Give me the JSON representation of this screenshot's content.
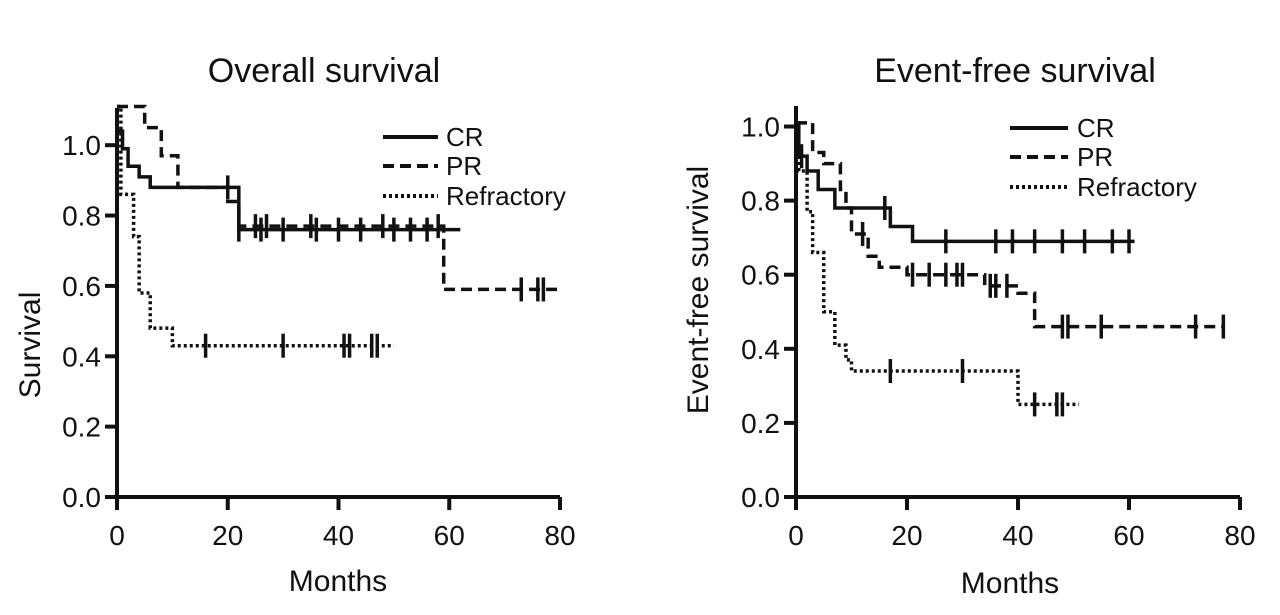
{
  "colors": {
    "ink": "#111111",
    "background": "#ffffff"
  },
  "chart_data": [
    {
      "type": "line",
      "title": "Overall survival",
      "xlabel": "Months",
      "ylabel": "Survival",
      "xlim": [
        0,
        80
      ],
      "ylim": [
        0,
        1.1
      ],
      "xticks": [
        "0",
        "20",
        "40",
        "60",
        "80"
      ],
      "yticks": [
        "0.0",
        "0.2",
        "0.4",
        "0.6",
        "0.8",
        "1.0"
      ],
      "legend": {
        "position": "top-right",
        "entries": [
          "CR",
          "PR",
          "Refractory"
        ]
      },
      "series": [
        {
          "name": "CR",
          "style": "solid",
          "steps": [
            [
              0,
              1.04
            ],
            [
              1,
              0.99
            ],
            [
              2,
              0.94
            ],
            [
              4,
              0.91
            ],
            [
              6,
              0.88
            ],
            [
              15,
              0.88
            ],
            [
              22,
              0.76
            ],
            [
              62,
              0.76
            ]
          ],
          "censored": [
            20,
            22,
            26,
            30,
            36,
            40,
            44,
            50,
            53,
            56
          ]
        },
        {
          "name": "PR",
          "style": "dashed",
          "steps": [
            [
              0,
              1.11
            ],
            [
              5,
              1.05
            ],
            [
              8,
              0.97
            ],
            [
              11,
              0.88
            ],
            [
              20,
              0.84
            ],
            [
              22,
              0.77
            ],
            [
              59,
              0.77
            ],
            [
              59,
              0.59
            ],
            [
              80,
              0.59
            ]
          ],
          "censored": [
            25,
            27,
            35,
            48,
            58,
            73,
            76,
            77
          ]
        },
        {
          "name": "Refractory",
          "style": "dotted",
          "steps": [
            [
              0,
              1.11
            ],
            [
              0.7,
              0.86
            ],
            [
              3,
              0.74
            ],
            [
              4,
              0.58
            ],
            [
              6,
              0.48
            ],
            [
              10,
              0.43
            ],
            [
              50,
              0.43
            ]
          ],
          "censored": [
            16,
            30,
            41,
            42,
            46,
            47
          ]
        }
      ]
    },
    {
      "type": "line",
      "title": "Event-free survival",
      "xlabel": "Months",
      "ylabel": "Event-free survival",
      "xlim": [
        0,
        80
      ],
      "ylim": [
        0,
        1.05
      ],
      "xticks": [
        "0",
        "20",
        "40",
        "60",
        "80"
      ],
      "yticks": [
        "0.0",
        "0.2",
        "0.4",
        "0.6",
        "0.8",
        "1.0"
      ],
      "legend": {
        "position": "top-right",
        "entries": [
          "CR",
          "PR",
          "Refractory"
        ]
      },
      "series": [
        {
          "name": "CR",
          "style": "solid",
          "steps": [
            [
              0,
              1.01
            ],
            [
              0.5,
              0.92
            ],
            [
              2,
              0.88
            ],
            [
              4,
              0.83
            ],
            [
              7,
              0.78
            ],
            [
              15,
              0.78
            ],
            [
              17,
              0.73
            ],
            [
              21,
              0.69
            ],
            [
              61,
              0.69
            ]
          ],
          "censored": [
            1,
            16,
            27,
            36,
            39,
            43,
            48,
            52,
            57,
            60
          ]
        },
        {
          "name": "PR",
          "style": "dashed",
          "steps": [
            [
              0,
              1.01
            ],
            [
              3,
              0.93
            ],
            [
              5,
              0.9
            ],
            [
              8,
              0.83
            ],
            [
              9,
              0.78
            ],
            [
              10,
              0.71
            ],
            [
              13,
              0.65
            ],
            [
              15,
              0.62
            ],
            [
              20,
              0.6
            ],
            [
              32,
              0.6
            ],
            [
              34,
              0.57
            ],
            [
              40,
              0.55
            ],
            [
              43,
              0.46
            ],
            [
              77,
              0.46
            ]
          ],
          "censored": [
            12,
            21,
            24,
            27,
            29,
            30,
            35,
            36,
            38,
            48,
            49,
            55,
            72,
            77
          ]
        },
        {
          "name": "Refractory",
          "style": "dotted",
          "steps": [
            [
              0,
              1.01
            ],
            [
              0.5,
              0.88
            ],
            [
              2,
              0.77
            ],
            [
              3,
              0.66
            ],
            [
              5,
              0.5
            ],
            [
              7,
              0.41
            ],
            [
              9,
              0.37
            ],
            [
              10,
              0.34
            ],
            [
              40,
              0.34
            ],
            [
              40,
              0.25
            ],
            [
              51,
              0.25
            ]
          ],
          "censored": [
            17,
            30,
            43,
            47,
            48
          ]
        }
      ]
    }
  ]
}
